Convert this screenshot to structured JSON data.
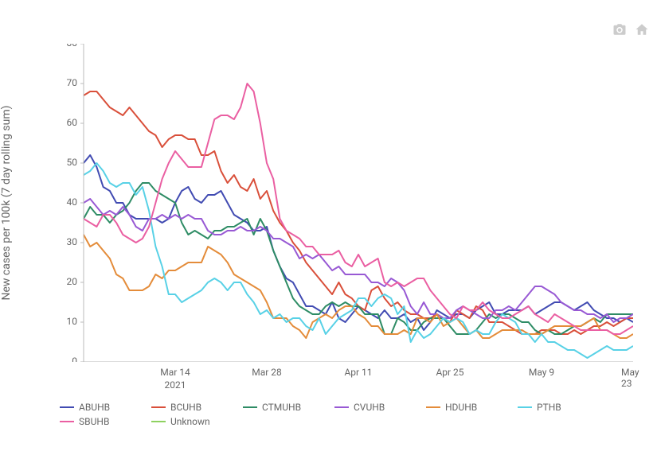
{
  "chart": {
    "type": "line",
    "background_color": "#ffffff",
    "axis_color": "#bbbbbb",
    "grid_color": "#eeeeee",
    "tick_font_size": 12,
    "tick_color": "#666666",
    "line_width": 2,
    "y_axis": {
      "title": "New cases per 100k (7 day rolling sum)",
      "min": 0,
      "max": 80,
      "tick_step": 10
    },
    "x_axis": {
      "domain_days": 84,
      "tick_positions_day": [
        14,
        28,
        42,
        56,
        70,
        84
      ],
      "tick_labels": [
        "Mar 14",
        "Mar 28",
        "Apr 11",
        "Apr 25",
        "May 9",
        "May 23"
      ],
      "second_row_label": "2021",
      "second_row_at_day": 14
    },
    "series": {
      "ABUHB": {
        "color": "#414bb2",
        "values": [
          50,
          52,
          49,
          44,
          43,
          40,
          40,
          37,
          36,
          36,
          36,
          36,
          35,
          36,
          40,
          43,
          44,
          41,
          40,
          42,
          42,
          43,
          40,
          37,
          36,
          35,
          33,
          33,
          34,
          28,
          24,
          21,
          20,
          17,
          14,
          14,
          13,
          12,
          15,
          11,
          10,
          12,
          14,
          13,
          12,
          11,
          13,
          11,
          11,
          12,
          10,
          11,
          8,
          10,
          13,
          12,
          11,
          12,
          12,
          11,
          13,
          14,
          15,
          12,
          12,
          13,
          13,
          13,
          14,
          12,
          13,
          14,
          15,
          15,
          14,
          13,
          14,
          15,
          13,
          12,
          11,
          11,
          10,
          11,
          10
        ]
      },
      "BCUHB": {
        "color": "#d94f3a",
        "values": [
          67,
          68,
          68,
          66,
          64,
          63,
          62,
          64,
          62,
          60,
          58,
          57,
          54,
          56,
          57,
          57,
          56,
          56,
          52,
          52,
          53,
          48,
          45,
          47,
          44,
          43,
          46,
          41,
          43,
          38,
          35,
          33,
          30,
          28,
          25,
          23,
          21,
          19,
          17,
          20,
          17,
          16,
          14,
          13,
          18,
          19,
          16,
          14,
          15,
          13,
          12,
          12,
          11,
          11,
          12,
          11,
          10,
          13,
          12,
          11,
          14,
          13,
          10,
          10,
          10,
          9,
          8,
          7,
          7,
          7,
          8,
          8,
          8,
          7,
          7,
          8,
          7,
          8,
          9,
          9,
          10,
          9,
          10,
          11,
          11
        ]
      },
      "CTMUHB": {
        "color": "#2e8c65",
        "values": [
          36,
          39,
          37,
          37,
          35,
          37,
          38,
          40,
          43,
          45,
          45,
          43,
          42,
          41,
          40,
          35,
          32,
          33,
          32,
          31,
          33,
          33,
          34,
          34,
          35,
          36,
          32,
          36,
          33,
          28,
          24,
          20,
          16,
          14,
          13,
          12,
          12,
          14,
          15,
          14,
          15,
          14,
          14,
          12,
          12,
          12,
          7,
          7,
          11,
          10,
          8,
          8,
          10,
          11,
          11,
          11,
          9,
          7,
          7,
          7,
          8,
          10,
          12,
          11,
          12,
          12,
          11,
          10,
          10,
          8,
          7,
          8,
          7,
          7,
          8,
          9,
          9,
          10,
          11,
          10,
          12,
          12,
          12,
          12,
          12
        ]
      },
      "CVUHB": {
        "color": "#9859d4",
        "values": [
          40,
          41,
          39,
          37,
          38,
          37,
          39,
          37,
          34,
          33,
          36,
          36,
          37,
          36,
          37,
          36,
          37,
          36,
          36,
          33,
          32,
          32,
          33,
          33,
          34,
          33,
          33,
          34,
          33,
          31,
          31,
          30,
          29,
          26,
          27,
          26,
          27,
          25,
          23,
          24,
          22,
          22,
          22,
          22,
          20,
          20,
          19,
          21,
          20,
          18,
          14,
          12,
          15,
          12,
          12,
          11,
          11,
          13,
          14,
          13,
          12,
          11,
          11,
          13,
          13,
          14,
          13,
          15,
          17,
          19,
          19,
          18,
          17,
          15,
          14,
          13,
          13,
          12,
          12,
          11,
          12,
          10,
          11,
          11,
          12
        ]
      },
      "HDUHB": {
        "color": "#e48c3a",
        "values": [
          32,
          29,
          30,
          28,
          26,
          22,
          21,
          18,
          18,
          18,
          19,
          22,
          21,
          23,
          23,
          24,
          25,
          25,
          25,
          29,
          28,
          27,
          25,
          22,
          21,
          20,
          19,
          18,
          15,
          11,
          11,
          11,
          9,
          8,
          6,
          10,
          11,
          12,
          11,
          13,
          14,
          14,
          12,
          11,
          9,
          9,
          7,
          7,
          7,
          8,
          7,
          11,
          11,
          10,
          12,
          9,
          10,
          11,
          9,
          7,
          8,
          6,
          6,
          7,
          8,
          8,
          8,
          8,
          7,
          7,
          7,
          8,
          9,
          9,
          9,
          9,
          9,
          10,
          11,
          8,
          8,
          7,
          6,
          6,
          7
        ]
      },
      "PTHB": {
        "color": "#58d1e6",
        "values": [
          47,
          48,
          50,
          48,
          45,
          44,
          45,
          45,
          42,
          44,
          38,
          29,
          24,
          17,
          17,
          15,
          16,
          17,
          18,
          20,
          21,
          20,
          18,
          20,
          20,
          17,
          15,
          12,
          13,
          11,
          12,
          10,
          11,
          11,
          9,
          8,
          11,
          7,
          9,
          11,
          12,
          13,
          16,
          16,
          14,
          16,
          17,
          16,
          12,
          14,
          5,
          8,
          6,
          7,
          9,
          11,
          10,
          11,
          10,
          7,
          8,
          7,
          7,
          10,
          12,
          11,
          10,
          7,
          7,
          5,
          7,
          5,
          5,
          4,
          3,
          3,
          2,
          1,
          2,
          3,
          4,
          3,
          3,
          3,
          4
        ]
      },
      "SBUHB": {
        "color": "#ea5fa2",
        "values": [
          36,
          35,
          34,
          37,
          37,
          35,
          32,
          31,
          30,
          31,
          34,
          40,
          46,
          50,
          53,
          51,
          49,
          49,
          49,
          55,
          61,
          62,
          62,
          61,
          64,
          70,
          68,
          60,
          50,
          46,
          36,
          33,
          32,
          31,
          29,
          29,
          27,
          27,
          27,
          28,
          25,
          24,
          27,
          24,
          25,
          26,
          20,
          19,
          20,
          19,
          20,
          21,
          21,
          18,
          16,
          14,
          12,
          11,
          14,
          13,
          13,
          15,
          13,
          12,
          11,
          11,
          12,
          13,
          14,
          12,
          11,
          10,
          12,
          11,
          10,
          9,
          8,
          8,
          8,
          8,
          8,
          7,
          7,
          8,
          9
        ]
      },
      "Unknown": {
        "color": "#8ed160",
        "values": []
      }
    },
    "legend": {
      "order": [
        "ABUHB",
        "BCUHB",
        "CTMUHB",
        "CVUHB",
        "HDUHB",
        "PTHB",
        "SBUHB",
        "Unknown"
      ]
    },
    "toolbar": {
      "camera_icon": "camera-icon",
      "home_icon": "home-icon",
      "icon_color": "#cccccc"
    }
  }
}
